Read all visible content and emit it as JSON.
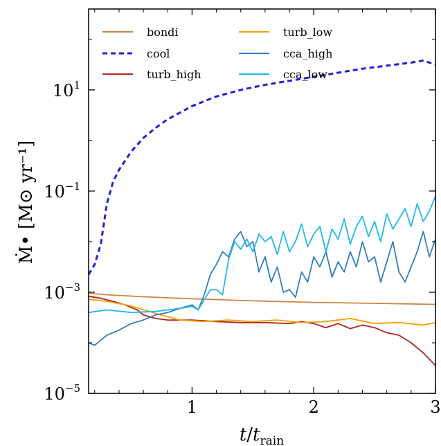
{
  "chart_data": {
    "type": "line",
    "xlabel": "t/t_rain",
    "ylabel": "Ṁ• [M⊙ yr⁻¹]",
    "xlim": [
      0.15,
      3.0
    ],
    "ylim_log10": [
      -5,
      2.6
    ],
    "yscale": "log",
    "x_ticks": [
      {
        "value": 1,
        "label": "1"
      },
      {
        "value": 2,
        "label": "2"
      },
      {
        "value": 3,
        "label": "3"
      }
    ],
    "y_ticks": [
      {
        "exp": 1,
        "base": "10",
        "sup": "1"
      },
      {
        "exp": -1,
        "base": "10",
        "sup": "−1"
      },
      {
        "exp": -3,
        "base": "10",
        "sup": "−3"
      },
      {
        "exp": -5,
        "base": "10",
        "sup": "−5"
      }
    ],
    "grid": false,
    "legend_position": "top",
    "series": [
      {
        "name": "bondi",
        "color": "#cd853f",
        "dash": "",
        "width": 1.8,
        "x": [
          0.15,
          0.3,
          0.6,
          1.0,
          1.5,
          2.0,
          2.5,
          3.0
        ],
        "log10y": [
          -3.02,
          -3.05,
          -3.09,
          -3.13,
          -3.17,
          -3.2,
          -3.22,
          -3.24
        ]
      },
      {
        "name": "cool",
        "color": "#1f1fd6",
        "dash": "7,5",
        "width": 3,
        "x": [
          0.15,
          0.2,
          0.25,
          0.3,
          0.35,
          0.4,
          0.5,
          0.6,
          0.7,
          0.8,
          1.0,
          1.2,
          1.4,
          1.6,
          1.8,
          2.0,
          2.2,
          2.4,
          2.6,
          2.8,
          2.9,
          3.0
        ],
        "log10y": [
          -2.65,
          -2.45,
          -2.05,
          -1.25,
          -0.82,
          -0.58,
          -0.22,
          0.05,
          0.25,
          0.42,
          0.68,
          0.87,
          1.0,
          1.1,
          1.18,
          1.26,
          1.34,
          1.42,
          1.48,
          1.54,
          1.58,
          1.5
        ]
      },
      {
        "name": "turb_high",
        "color": "#b22222",
        "dash": "",
        "width": 1.8,
        "x": [
          0.15,
          0.25,
          0.35,
          0.45,
          0.55,
          0.6,
          0.7,
          0.8,
          1.0,
          1.2,
          1.4,
          1.6,
          1.8,
          1.9,
          2.0,
          2.1,
          2.2,
          2.3,
          2.4,
          2.5,
          2.6,
          2.7,
          2.8,
          2.9,
          3.0
        ],
        "log10y": [
          -3.08,
          -3.12,
          -3.18,
          -3.25,
          -3.35,
          -3.45,
          -3.52,
          -3.55,
          -3.55,
          -3.58,
          -3.6,
          -3.6,
          -3.62,
          -3.58,
          -3.62,
          -3.7,
          -3.62,
          -3.72,
          -3.65,
          -3.7,
          -3.8,
          -3.85,
          -4.0,
          -4.2,
          -4.45
        ]
      },
      {
        "name": "turb_low",
        "color": "#f5a000",
        "dash": "",
        "width": 1.8,
        "x": [
          0.15,
          0.3,
          0.5,
          0.7,
          0.9,
          1.1,
          1.3,
          1.5,
          1.7,
          1.9,
          2.1,
          2.3,
          2.5,
          2.7,
          2.9,
          3.0
        ],
        "log10y": [
          -3.14,
          -3.18,
          -3.27,
          -3.42,
          -3.55,
          -3.58,
          -3.55,
          -3.58,
          -3.55,
          -3.6,
          -3.58,
          -3.52,
          -3.62,
          -3.6,
          -3.65,
          -3.6
        ]
      },
      {
        "name": "cca_high",
        "color": "#2f7ebf",
        "dash": "",
        "width": 1.8,
        "x": [
          0.15,
          0.2,
          0.3,
          0.4,
          0.5,
          0.6,
          0.7,
          0.8,
          0.9,
          1.0,
          1.05,
          1.1,
          1.15,
          1.2,
          1.25,
          1.3,
          1.35,
          1.4,
          1.45,
          1.5,
          1.55,
          1.6,
          1.65,
          1.7,
          1.75,
          1.8,
          1.85,
          1.9,
          1.95,
          2.0,
          2.05,
          2.1,
          2.15,
          2.2,
          2.25,
          2.3,
          2.35,
          2.4,
          2.45,
          2.5,
          2.55,
          2.6,
          2.65,
          2.7,
          2.75,
          2.8,
          2.85,
          2.9,
          2.95,
          3.0
        ],
        "log10y": [
          -4.0,
          -4.05,
          -3.85,
          -3.75,
          -3.62,
          -3.55,
          -3.45,
          -3.4,
          -3.32,
          -3.25,
          -3.35,
          -3.05,
          -2.65,
          -2.45,
          -2.2,
          -2.3,
          -1.95,
          -1.8,
          -2.1,
          -2.0,
          -2.6,
          -2.3,
          -2.8,
          -2.5,
          -3.0,
          -2.95,
          -3.1,
          -2.6,
          -2.8,
          -2.3,
          -2.5,
          -2.2,
          -2.7,
          -2.4,
          -2.6,
          -2.2,
          -2.5,
          -2.0,
          -2.4,
          -2.3,
          -2.8,
          -2.4,
          -2.0,
          -2.6,
          -2.8,
          -2.5,
          -2.2,
          -1.8,
          -2.3,
          -1.95
        ]
      },
      {
        "name": "cca_low",
        "color": "#1eb8ea",
        "dash": "",
        "width": 1.8,
        "x": [
          0.15,
          0.3,
          0.5,
          0.7,
          0.9,
          1.0,
          1.05,
          1.1,
          1.15,
          1.2,
          1.25,
          1.3,
          1.35,
          1.4,
          1.45,
          1.5,
          1.55,
          1.6,
          1.65,
          1.7,
          1.75,
          1.8,
          1.85,
          1.9,
          1.95,
          2.0,
          2.05,
          2.1,
          2.15,
          2.2,
          2.25,
          2.3,
          2.35,
          2.4,
          2.45,
          2.5,
          2.55,
          2.6,
          2.65,
          2.7,
          2.75,
          2.8,
          2.85,
          2.9,
          2.95,
          3.0
        ],
        "log10y": [
          -3.4,
          -3.35,
          -3.4,
          -3.38,
          -3.32,
          -3.28,
          -3.35,
          -3.15,
          -2.95,
          -2.95,
          -3.05,
          -2.35,
          -2.0,
          -2.15,
          -1.95,
          -2.2,
          -1.85,
          -2.0,
          -1.9,
          -2.25,
          -1.8,
          -2.2,
          -2.0,
          -1.65,
          -2.1,
          -1.85,
          -1.7,
          -2.2,
          -1.75,
          -1.95,
          -1.55,
          -2.05,
          -1.7,
          -1.5,
          -1.9,
          -1.6,
          -2.0,
          -1.45,
          -1.75,
          -1.55,
          -1.35,
          -1.7,
          -1.25,
          -1.6,
          -1.4,
          -1.1
        ]
      }
    ]
  }
}
